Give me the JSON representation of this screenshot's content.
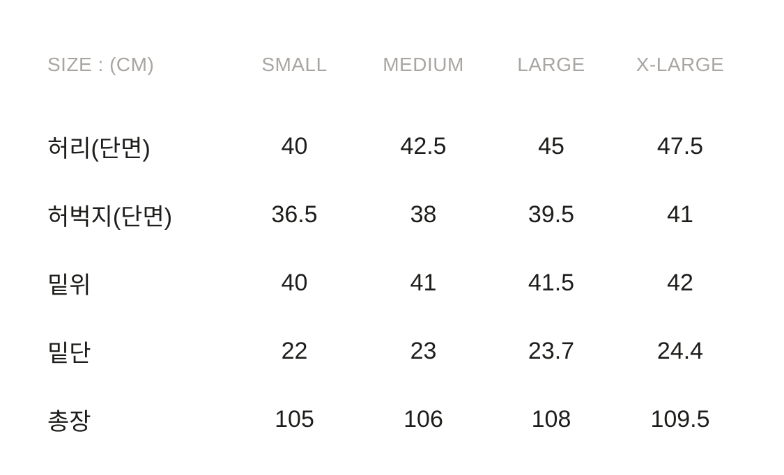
{
  "size_chart": {
    "unit_label": "SIZE : (CM)",
    "columns": [
      "SMALL",
      "MEDIUM",
      "LARGE",
      "X-LARGE"
    ],
    "rows": [
      {
        "label": "허리(단면)",
        "values": [
          "40",
          "42.5",
          "45",
          "47.5"
        ]
      },
      {
        "label": "허벅지(단면)",
        "values": [
          "36.5",
          "38",
          "39.5",
          "41"
        ]
      },
      {
        "label": "밑위",
        "values": [
          "40",
          "41",
          "41.5",
          "42"
        ]
      },
      {
        "label": "밑단",
        "values": [
          "22",
          "23",
          "23.7",
          "24.4"
        ]
      },
      {
        "label": "총장",
        "values": [
          "105",
          "106",
          "108",
          "109.5"
        ]
      }
    ],
    "colors": {
      "header_text": "#a8a5a2",
      "body_text": "#1d1d1b",
      "background": "#ffffff"
    }
  },
  "chart_data": {
    "type": "table",
    "title": "SIZE : (CM)",
    "columns": [
      "SMALL",
      "MEDIUM",
      "LARGE",
      "X-LARGE"
    ],
    "row_labels": [
      "허리(단면)",
      "허벅지(단면)",
      "밑위",
      "밑단",
      "총장"
    ],
    "series": [
      {
        "name": "허리(단면)",
        "values": [
          40,
          42.5,
          45,
          47.5
        ]
      },
      {
        "name": "허벅지(단면)",
        "values": [
          36.5,
          38,
          39.5,
          41
        ]
      },
      {
        "name": "밑위",
        "values": [
          40,
          41,
          41.5,
          42
        ]
      },
      {
        "name": "밑단",
        "values": [
          22,
          23,
          23.7,
          24.4
        ]
      },
      {
        "name": "총장",
        "values": [
          105,
          106,
          108,
          109.5
        ]
      }
    ],
    "layout": {
      "grid": false,
      "borders": false,
      "first_column_align": "left",
      "value_align": "center"
    }
  }
}
